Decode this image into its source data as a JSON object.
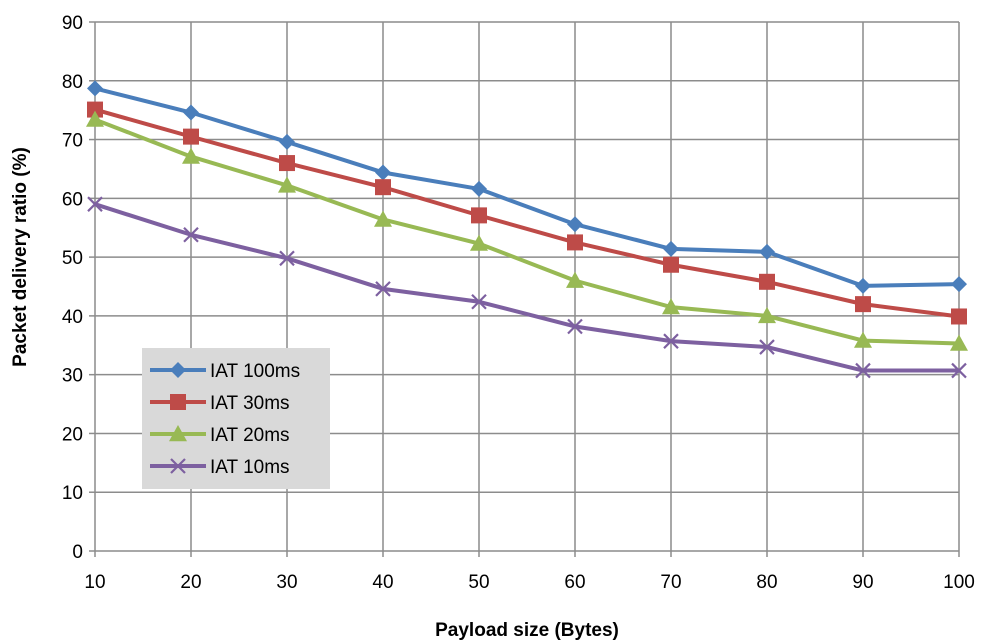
{
  "chart_data": {
    "type": "line",
    "xlabel": "Payload size (Bytes)",
    "ylabel": "Packet delivery ratio (%)",
    "x": [
      10,
      20,
      30,
      40,
      50,
      60,
      70,
      80,
      90,
      100
    ],
    "xlim": [
      10,
      100
    ],
    "ylim": [
      0,
      90
    ],
    "x_ticks": [
      "10",
      "20",
      "30",
      "40",
      "50",
      "60",
      "70",
      "80",
      "90",
      "100"
    ],
    "y_ticks": [
      "0",
      "10",
      "20",
      "30",
      "40",
      "50",
      "60",
      "70",
      "80",
      "90"
    ],
    "grid": true,
    "legend_position": "bottom-left",
    "series": [
      {
        "name": "IAT 100ms",
        "color": "#4a7ebb",
        "marker": "diamond",
        "values": [
          78.7,
          74.6,
          69.6,
          64.4,
          61.6,
          55.6,
          51.4,
          50.9,
          45.1,
          45.4
        ]
      },
      {
        "name": "IAT 30ms",
        "color": "#be4b48",
        "marker": "square",
        "values": [
          75.1,
          70.5,
          66.0,
          61.9,
          57.1,
          52.5,
          48.7,
          45.8,
          42.0,
          39.9
        ]
      },
      {
        "name": "IAT 20ms",
        "color": "#98b954",
        "marker": "triangle",
        "values": [
          73.4,
          67.1,
          62.2,
          56.4,
          52.3,
          46.0,
          41.5,
          40.0,
          35.8,
          35.3
        ]
      },
      {
        "name": "IAT 10ms",
        "color": "#7d60a0",
        "marker": "x",
        "values": [
          59.0,
          53.8,
          49.8,
          44.6,
          42.4,
          38.2,
          35.7,
          34.7,
          30.7,
          30.7
        ]
      }
    ]
  }
}
